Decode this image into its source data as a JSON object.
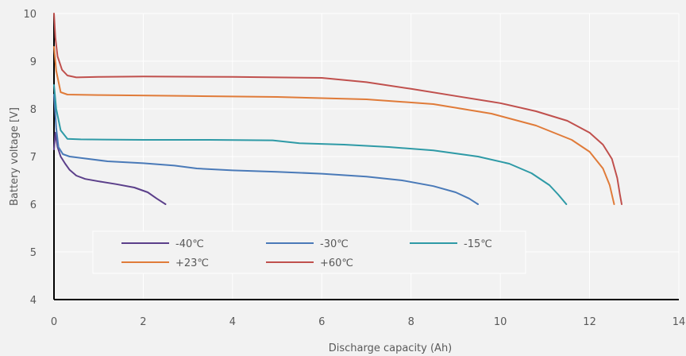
{
  "chart_data": {
    "type": "line",
    "xlabel": "Discharge capacity (Ah)",
    "ylabel": "Battery voltage [V]",
    "xlim": [
      0,
      14
    ],
    "ylim": [
      4,
      10
    ],
    "xticks": [
      "0",
      "2",
      "4",
      "6",
      "8",
      "10",
      "12",
      "14"
    ],
    "yticks": [
      "4",
      "5",
      "6",
      "7",
      "8",
      "9",
      "10"
    ],
    "grid": true,
    "legend_position": "lower-left",
    "series": [
      {
        "name": "-40℃",
        "color": "#5b3f8a",
        "points": [
          [
            0,
            7.15
          ],
          [
            0.03,
            7.5
          ],
          [
            0.08,
            7.2
          ],
          [
            0.15,
            7.0
          ],
          [
            0.25,
            6.85
          ],
          [
            0.35,
            6.72
          ],
          [
            0.5,
            6.6
          ],
          [
            0.7,
            6.53
          ],
          [
            1.0,
            6.48
          ],
          [
            1.4,
            6.42
          ],
          [
            1.8,
            6.35
          ],
          [
            2.1,
            6.25
          ],
          [
            2.3,
            6.12
          ],
          [
            2.5,
            6.0
          ]
        ]
      },
      {
        "name": "-30℃",
        "color": "#4a7ab8",
        "points": [
          [
            0,
            8.3
          ],
          [
            0.05,
            7.6
          ],
          [
            0.1,
            7.2
          ],
          [
            0.2,
            7.05
          ],
          [
            0.35,
            7.0
          ],
          [
            0.6,
            6.97
          ],
          [
            1.2,
            6.9
          ],
          [
            2.0,
            6.86
          ],
          [
            2.7,
            6.81
          ],
          [
            3.2,
            6.75
          ],
          [
            4.0,
            6.71
          ],
          [
            5.0,
            6.68
          ],
          [
            6.0,
            6.64
          ],
          [
            7.0,
            6.58
          ],
          [
            7.8,
            6.5
          ],
          [
            8.5,
            6.38
          ],
          [
            9.0,
            6.25
          ],
          [
            9.3,
            6.12
          ],
          [
            9.5,
            6.0
          ]
        ]
      },
      {
        "name": "-15℃",
        "color": "#2e9aa6",
        "points": [
          [
            0,
            8.5
          ],
          [
            0.05,
            8.0
          ],
          [
            0.15,
            7.55
          ],
          [
            0.3,
            7.37
          ],
          [
            0.6,
            7.36
          ],
          [
            2.0,
            7.35
          ],
          [
            3.5,
            7.35
          ],
          [
            4.9,
            7.34
          ],
          [
            5.5,
            7.28
          ],
          [
            6.5,
            7.25
          ],
          [
            7.5,
            7.2
          ],
          [
            8.5,
            7.13
          ],
          [
            9.5,
            7.0
          ],
          [
            10.2,
            6.85
          ],
          [
            10.7,
            6.65
          ],
          [
            11.1,
            6.4
          ],
          [
            11.3,
            6.2
          ],
          [
            11.48,
            6.0
          ]
        ]
      },
      {
        "name": "+23℃",
        "color": "#e07b39",
        "points": [
          [
            0,
            9.3
          ],
          [
            0.05,
            8.8
          ],
          [
            0.15,
            8.35
          ],
          [
            0.3,
            8.3
          ],
          [
            1.0,
            8.29
          ],
          [
            3.0,
            8.27
          ],
          [
            5.0,
            8.25
          ],
          [
            7.0,
            8.2
          ],
          [
            8.5,
            8.1
          ],
          [
            9.8,
            7.9
          ],
          [
            10.8,
            7.65
          ],
          [
            11.6,
            7.35
          ],
          [
            12.0,
            7.1
          ],
          [
            12.3,
            6.75
          ],
          [
            12.45,
            6.4
          ],
          [
            12.55,
            6.0
          ]
        ]
      },
      {
        "name": "+60℃",
        "color": "#c0504d",
        "points": [
          [
            0,
            10.0
          ],
          [
            0.03,
            9.5
          ],
          [
            0.08,
            9.1
          ],
          [
            0.18,
            8.82
          ],
          [
            0.3,
            8.7
          ],
          [
            0.5,
            8.66
          ],
          [
            1.0,
            8.67
          ],
          [
            2.0,
            8.68
          ],
          [
            4.0,
            8.67
          ],
          [
            6.0,
            8.65
          ],
          [
            7.0,
            8.56
          ],
          [
            8.0,
            8.42
          ],
          [
            9.0,
            8.27
          ],
          [
            10.0,
            8.12
          ],
          [
            10.8,
            7.95
          ],
          [
            11.5,
            7.75
          ],
          [
            12.0,
            7.5
          ],
          [
            12.3,
            7.25
          ],
          [
            12.5,
            6.95
          ],
          [
            12.62,
            6.55
          ],
          [
            12.68,
            6.2
          ],
          [
            12.72,
            6.0
          ]
        ]
      }
    ]
  }
}
